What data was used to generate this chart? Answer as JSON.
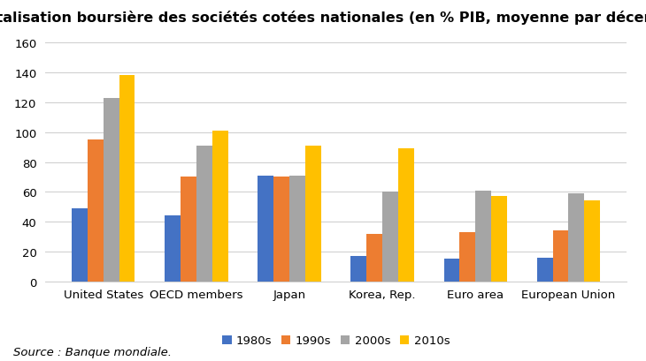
{
  "title": "Capitalisation boursière des sociétés cotées nationales (en % PIB, moyenne par décennie)",
  "categories": [
    "United States",
    "OECD members",
    "Japan",
    "Korea, Rep.",
    "Euro area",
    "European Union"
  ],
  "series": {
    "1980s": [
      49,
      44,
      71,
      17,
      15,
      16
    ],
    "1990s": [
      95,
      70,
      70,
      32,
      33,
      34
    ],
    "2000s": [
      123,
      91,
      71,
      60,
      61,
      59
    ],
    "2010s": [
      138,
      101,
      91,
      89,
      57,
      54
    ]
  },
  "colors": {
    "1980s": "#4472C4",
    "1990s": "#ED7D31",
    "2000s": "#A5A5A5",
    "2010s": "#FFC000"
  },
  "legend_labels": [
    "1980s",
    "1990s",
    "2000s",
    "2010s"
  ],
  "ylim": [
    0,
    160
  ],
  "yticks": [
    0,
    20,
    40,
    60,
    80,
    100,
    120,
    140,
    160
  ],
  "source": "Source : Banque mondiale.",
  "background_color": "#FFFFFF",
  "title_fontsize": 11.5,
  "tick_fontsize": 9.5,
  "legend_fontsize": 9.5,
  "source_fontsize": 9.5
}
